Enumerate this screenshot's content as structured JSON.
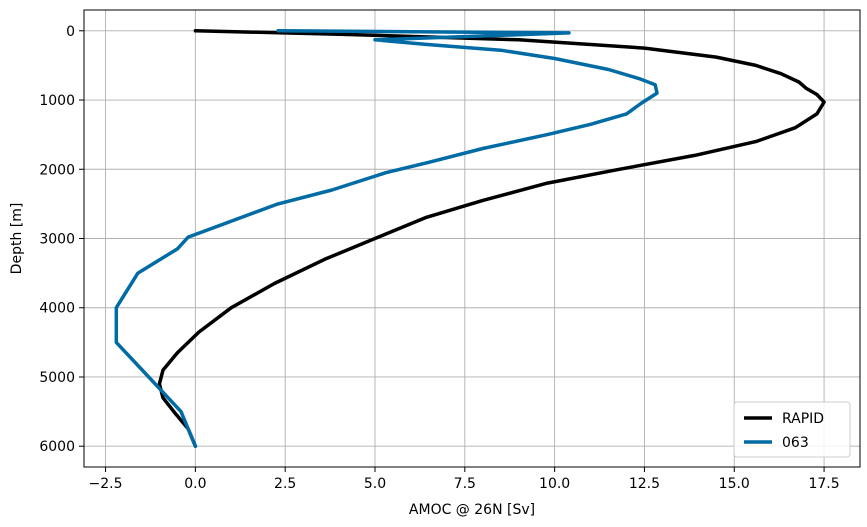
{
  "chart_data": {
    "type": "line",
    "title": "",
    "xlabel": "AMOC @ 26N [Sv]",
    "ylabel": "Depth [m]",
    "xlim": [
      -3.1,
      18.5
    ],
    "ylim": [
      6300,
      -300
    ],
    "y_inverted": true,
    "xticks": [
      -2.5,
      0.0,
      2.5,
      5.0,
      7.5,
      10.0,
      12.5,
      15.0,
      17.5
    ],
    "xtick_labels": [
      "−2.5",
      "0.0",
      "2.5",
      "5.0",
      "7.5",
      "10.0",
      "12.5",
      "15.0",
      "17.5"
    ],
    "yticks": [
      0,
      1000,
      2000,
      3000,
      4000,
      5000,
      6000
    ],
    "ytick_labels": [
      "0",
      "1000",
      "2000",
      "3000",
      "4000",
      "5000",
      "6000"
    ],
    "grid": true,
    "legend_position": "lower-right",
    "series": [
      {
        "name": "RAPID",
        "color": "#000000",
        "points": [
          [
            0.0,
            0
          ],
          [
            4.0,
            50
          ],
          [
            9.0,
            130
          ],
          [
            12.5,
            250
          ],
          [
            14.5,
            380
          ],
          [
            15.6,
            500
          ],
          [
            16.3,
            620
          ],
          [
            16.8,
            740
          ],
          [
            17.0,
            830
          ],
          [
            17.3,
            920
          ],
          [
            17.5,
            1030
          ],
          [
            17.3,
            1200
          ],
          [
            16.7,
            1400
          ],
          [
            15.6,
            1600
          ],
          [
            13.9,
            1800
          ],
          [
            11.8,
            2000
          ],
          [
            9.8,
            2200
          ],
          [
            8.0,
            2450
          ],
          [
            6.4,
            2700
          ],
          [
            5.0,
            3000
          ],
          [
            3.6,
            3300
          ],
          [
            2.2,
            3650
          ],
          [
            1.0,
            4000
          ],
          [
            0.1,
            4350
          ],
          [
            -0.5,
            4650
          ],
          [
            -0.9,
            4900
          ],
          [
            -1.0,
            5100
          ],
          [
            -0.9,
            5300
          ],
          [
            -0.6,
            5500
          ],
          [
            -0.2,
            5750
          ],
          [
            0.0,
            6000
          ]
        ]
      },
      {
        "name": "063",
        "color": "#006ba4",
        "points": [
          [
            2.3,
            0
          ],
          [
            10.4,
            30
          ],
          [
            5.0,
            130
          ],
          [
            6.5,
            200
          ],
          [
            8.5,
            280
          ],
          [
            10.0,
            400
          ],
          [
            11.5,
            560
          ],
          [
            12.4,
            700
          ],
          [
            12.8,
            780
          ],
          [
            12.85,
            900
          ],
          [
            12.4,
            1050
          ],
          [
            12.0,
            1200
          ],
          [
            11.0,
            1350
          ],
          [
            9.8,
            1500
          ],
          [
            8.0,
            1700
          ],
          [
            6.5,
            1900
          ],
          [
            5.3,
            2050
          ],
          [
            3.8,
            2300
          ],
          [
            2.3,
            2500
          ],
          [
            -0.2,
            2980
          ],
          [
            -0.5,
            3150
          ],
          [
            -1.6,
            3500
          ],
          [
            -2.2,
            4000
          ],
          [
            -2.2,
            4500
          ],
          [
            -1.3,
            5000
          ],
          [
            -0.4,
            5500
          ],
          [
            0.0,
            6000
          ]
        ]
      }
    ]
  }
}
